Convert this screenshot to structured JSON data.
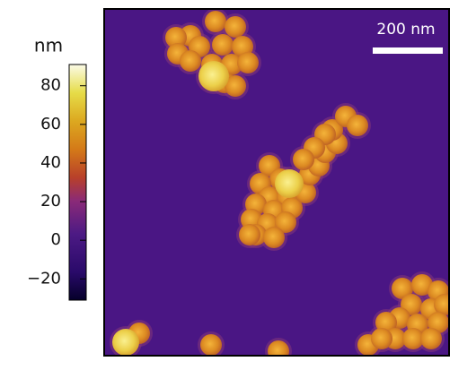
{
  "colorbar": {
    "label": "nm",
    "lim": [
      -31,
      91
    ],
    "ticks": [
      {
        "value": -20,
        "label": "−20"
      },
      0,
      20,
      40,
      60,
      80
    ]
  },
  "scale_bar": {
    "label": "200 nm"
  }
}
